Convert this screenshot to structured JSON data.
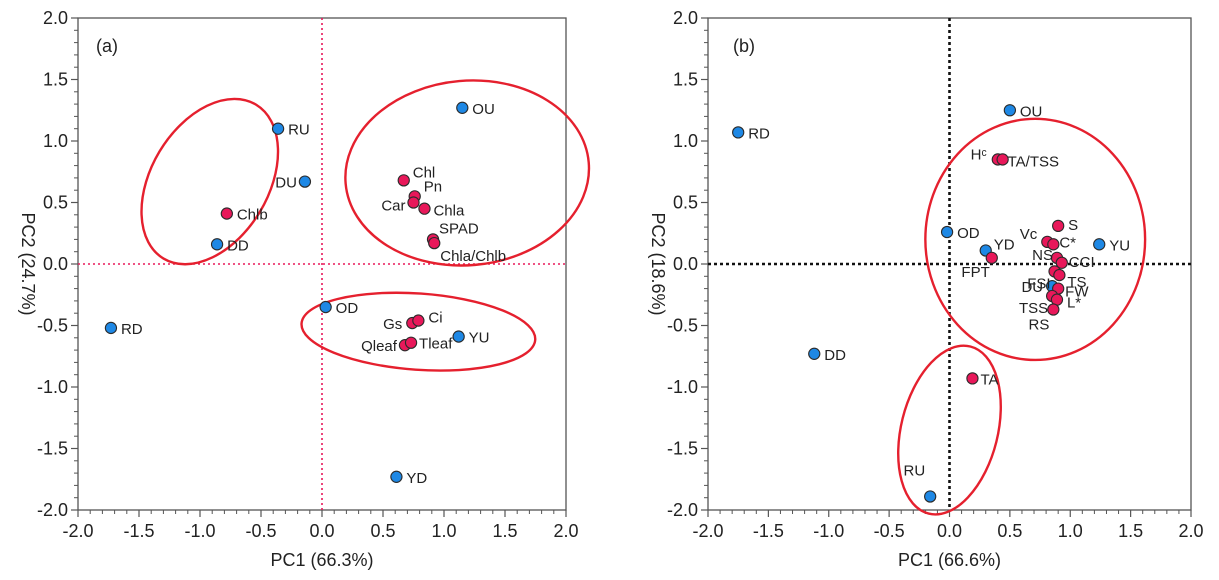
{
  "chart_data": [
    {
      "type": "scatter",
      "panel_label": "(a)",
      "xlabel": "PC1 (66.3%)",
      "ylabel": "PC2 (24.7%)",
      "xlim": [
        -2.0,
        2.0
      ],
      "ylim": [
        -2.0,
        2.0
      ],
      "xticks": [
        "-2.0",
        "-1.5",
        "-1.0",
        "-0.5",
        "0.0",
        "0.5",
        "1.0",
        "1.5",
        "2.0"
      ],
      "yticks": [
        "2.0",
        "1.5",
        "1.0",
        "0.5",
        "0.0",
        "-0.5",
        "-1.0",
        "-1.5",
        "-2.0"
      ],
      "reference_lines": {
        "style": "dotted",
        "color": "#e8185a"
      },
      "series": [
        {
          "color": "#1e88e5",
          "points": [
            {
              "label": "OU",
              "x": 1.15,
              "y": 1.27
            },
            {
              "label": "RU",
              "x": -0.36,
              "y": 1.1
            },
            {
              "label": "DU",
              "x": -0.14,
              "y": 0.67
            },
            {
              "label": "DD",
              "x": -0.86,
              "y": 0.16
            },
            {
              "label": "RD",
              "x": -1.73,
              "y": -0.52
            },
            {
              "label": "OD",
              "x": 0.03,
              "y": -0.35
            },
            {
              "label": "YU",
              "x": 1.12,
              "y": -0.59
            },
            {
              "label": "YD",
              "x": 0.61,
              "y": -1.73
            }
          ]
        },
        {
          "color": "#e8185a",
          "points": [
            {
              "label": "Chl",
              "x": 0.67,
              "y": 0.68
            },
            {
              "label": "Pn",
              "x": 0.76,
              "y": 0.55
            },
            {
              "label": "Car",
              "x": 0.75,
              "y": 0.5
            },
            {
              "label": "Chla",
              "x": 0.84,
              "y": 0.45
            },
            {
              "label": "SPAD",
              "x": 0.91,
              "y": 0.2
            },
            {
              "label": "Chla/Chlb",
              "x": 0.92,
              "y": 0.17
            },
            {
              "label": "Chlb",
              "x": -0.78,
              "y": 0.41
            },
            {
              "label": "Gs",
              "x": 0.74,
              "y": -0.48
            },
            {
              "label": "Ci",
              "x": 0.79,
              "y": -0.46
            },
            {
              "label": "Qleaf",
              "x": 0.68,
              "y": -0.66
            },
            {
              "label": "Tleaf",
              "x": 0.73,
              "y": -0.64
            }
          ]
        }
      ],
      "clusters": [
        {
          "cx": -0.92,
          "cy": 0.67,
          "rx": 0.48,
          "ry": 0.73,
          "rotate": 31
        },
        {
          "cx": 1.19,
          "cy": 0.74,
          "rx": 1.0,
          "ry": 0.75,
          "rotate": -5
        },
        {
          "cx": 0.79,
          "cy": -0.55,
          "rx": 0.96,
          "ry": 0.31,
          "rotate": 4
        }
      ]
    },
    {
      "type": "scatter",
      "panel_label": "(b)",
      "xlabel": "PC1 (66.6%)",
      "ylabel": "PC2 (18.6%)",
      "xlim": [
        -2.0,
        2.0
      ],
      "ylim": [
        -2.0,
        2.0
      ],
      "xticks": [
        "-2.0",
        "-1.5",
        "-1.0",
        "-0.5",
        "0.0",
        "0.5",
        "1.0",
        "1.5",
        "2.0"
      ],
      "yticks": [
        "2.0",
        "1.5",
        "1.0",
        "0.5",
        "0.0",
        "-0.5",
        "-1.0",
        "-1.5",
        "-2.0"
      ],
      "reference_lines": {
        "style": "dotted",
        "color": "#111111"
      },
      "series": [
        {
          "color": "#1e88e5",
          "points": [
            {
              "label": "RD",
              "x": -1.75,
              "y": 1.07
            },
            {
              "label": "OU",
              "x": 0.5,
              "y": 1.25
            },
            {
              "label": "OD",
              "x": -0.02,
              "y": 0.26
            },
            {
              "label": "YD",
              "x": 0.3,
              "y": 0.11
            },
            {
              "label": "YU",
              "x": 1.24,
              "y": 0.16
            },
            {
              "label": "DU",
              "x": 0.85,
              "y": -0.18
            },
            {
              "label": "DD",
              "x": -1.12,
              "y": -0.73
            },
            {
              "label": "RU",
              "x": -0.16,
              "y": -1.89
            }
          ]
        },
        {
          "color": "#e8185a",
          "points": [
            {
              "label": "Hᶜ",
              "x": 0.4,
              "y": 0.85
            },
            {
              "label": "TA/TSS",
              "x": 0.44,
              "y": 0.85
            },
            {
              "label": "S",
              "x": 0.9,
              "y": 0.31
            },
            {
              "label": "Vc",
              "x": 0.81,
              "y": 0.18
            },
            {
              "label": "C*",
              "x": 0.86,
              "y": 0.16
            },
            {
              "label": "NS",
              "x": 0.89,
              "y": 0.05
            },
            {
              "label": "CCI",
              "x": 0.93,
              "y": 0.01
            },
            {
              "label": "FPT",
              "x": 0.35,
              "y": 0.05
            },
            {
              "label": "FSI",
              "x": 0.87,
              "y": -0.06
            },
            {
              "label": "TS",
              "x": 0.91,
              "y": -0.09
            },
            {
              "label": "FW",
              "x": 0.9,
              "y": -0.2
            },
            {
              "label": "TSS",
              "x": 0.85,
              "y": -0.26
            },
            {
              "label": "L*",
              "x": 0.89,
              "y": -0.29
            },
            {
              "label": "RS",
              "x": 0.86,
              "y": -0.37
            },
            {
              "label": "TA",
              "x": 0.19,
              "y": -0.93
            }
          ]
        }
      ],
      "clusters": [
        {
          "cx": 0.71,
          "cy": 0.2,
          "rx": 0.91,
          "ry": 0.98,
          "rotate": 0
        },
        {
          "cx": 0.0,
          "cy": -1.35,
          "rx": 0.4,
          "ry": 0.7,
          "rotate": 14
        }
      ]
    }
  ]
}
